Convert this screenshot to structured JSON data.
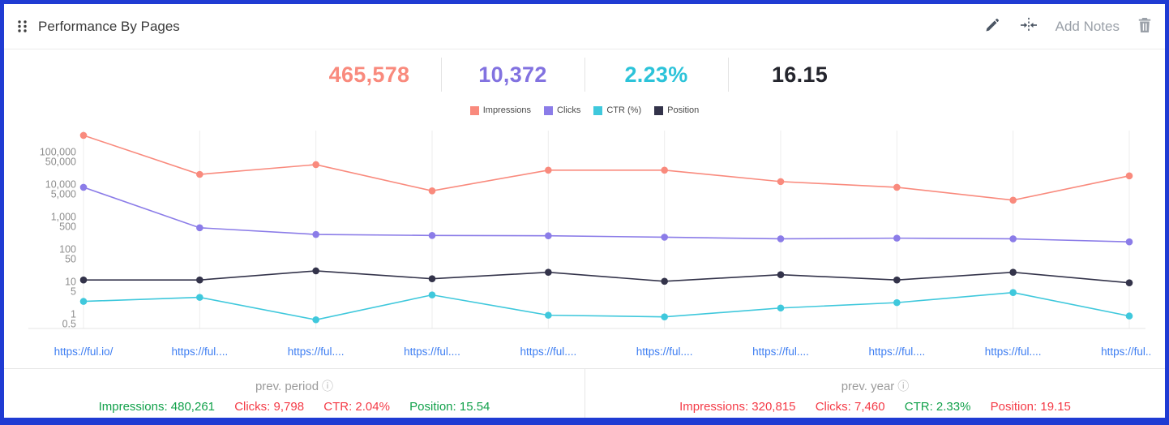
{
  "header": {
    "title": "Performance By Pages",
    "add_notes_label": "Add Notes"
  },
  "stats": [
    {
      "name": "Impressions",
      "value": "465,578",
      "color": "#f98a7d"
    },
    {
      "name": "Clicks",
      "value": "10,372",
      "color": "#8272e0"
    },
    {
      "name": "CTR",
      "value": "2.23%",
      "color": "#2cc3d9"
    },
    {
      "name": "Position",
      "value": "16.15",
      "color": "#24252d"
    }
  ],
  "legend": [
    {
      "label": "Impressions",
      "color": "#f98a7d"
    },
    {
      "label": "Clicks",
      "color": "#8b7ce8"
    },
    {
      "label": "CTR (%)",
      "color": "#3fc8dc"
    },
    {
      "label": "Position",
      "color": "#33334a"
    }
  ],
  "chart_data": {
    "type": "line",
    "y_scale": "log",
    "ylim": [
      0.35,
      450000
    ],
    "x": [
      "https://ful.io/",
      "https://ful....",
      "https://ful....",
      "https://ful....",
      "https://ful....",
      "https://ful....",
      "https://ful....",
      "https://ful....",
      "https://ful....",
      "https://ful...."
    ],
    "y_ticks": [
      {
        "v": 100000,
        "label": "100,000"
      },
      {
        "v": 50000,
        "label": "50,000"
      },
      {
        "v": 10000,
        "label": "10,000"
      },
      {
        "v": 5000,
        "label": "5,000"
      },
      {
        "v": 1000,
        "label": "1,000"
      },
      {
        "v": 500,
        "label": "500"
      },
      {
        "v": 100,
        "label": "100"
      },
      {
        "v": 50,
        "label": "50"
      },
      {
        "v": 10,
        "label": "10"
      },
      {
        "v": 5,
        "label": "5"
      },
      {
        "v": 1,
        "label": "1"
      },
      {
        "v": 0.5,
        "label": "0.5"
      }
    ],
    "series": [
      {
        "name": "Impressions",
        "color": "#f98a7d",
        "values": [
          320000,
          20000,
          40000,
          6200,
          27000,
          27000,
          12000,
          8000,
          3200,
          18000
        ]
      },
      {
        "name": "Clicks",
        "color": "#8b7ce8",
        "values": [
          8000,
          450,
          280,
          260,
          255,
          230,
          205,
          215,
          205,
          165
        ]
      },
      {
        "name": "CTR (%)",
        "color": "#3fc8dc",
        "values": [
          2.4,
          3.2,
          0.65,
          3.8,
          0.9,
          0.8,
          1.5,
          2.2,
          4.5,
          0.85
        ]
      },
      {
        "name": "Position",
        "color": "#33334a",
        "values": [
          11,
          11,
          21,
          12,
          19,
          10,
          16,
          11,
          19,
          9
        ]
      }
    ],
    "title": "",
    "xlabel": "",
    "ylabel": "",
    "legend_position": "top",
    "grid": "vertical"
  },
  "footer": {
    "prev_period": {
      "title": "prev. period",
      "items": [
        {
          "label": "Impressions:",
          "value": "480,261",
          "color": "#12a14b"
        },
        {
          "label": "Clicks:",
          "value": "9,798",
          "color": "#f43b47"
        },
        {
          "label": "CTR:",
          "value": "2.04%",
          "color": "#f43b47"
        },
        {
          "label": "Position:",
          "value": "15.54",
          "color": "#12a14b"
        }
      ]
    },
    "prev_year": {
      "title": "prev. year",
      "items": [
        {
          "label": "Impressions:",
          "value": "320,815",
          "color": "#f43b47"
        },
        {
          "label": "Clicks:",
          "value": "7,460",
          "color": "#f43b47"
        },
        {
          "label": "CTR:",
          "value": "2.33%",
          "color": "#12a14b"
        },
        {
          "label": "Position:",
          "value": "19.15",
          "color": "#f43b47"
        }
      ]
    }
  }
}
